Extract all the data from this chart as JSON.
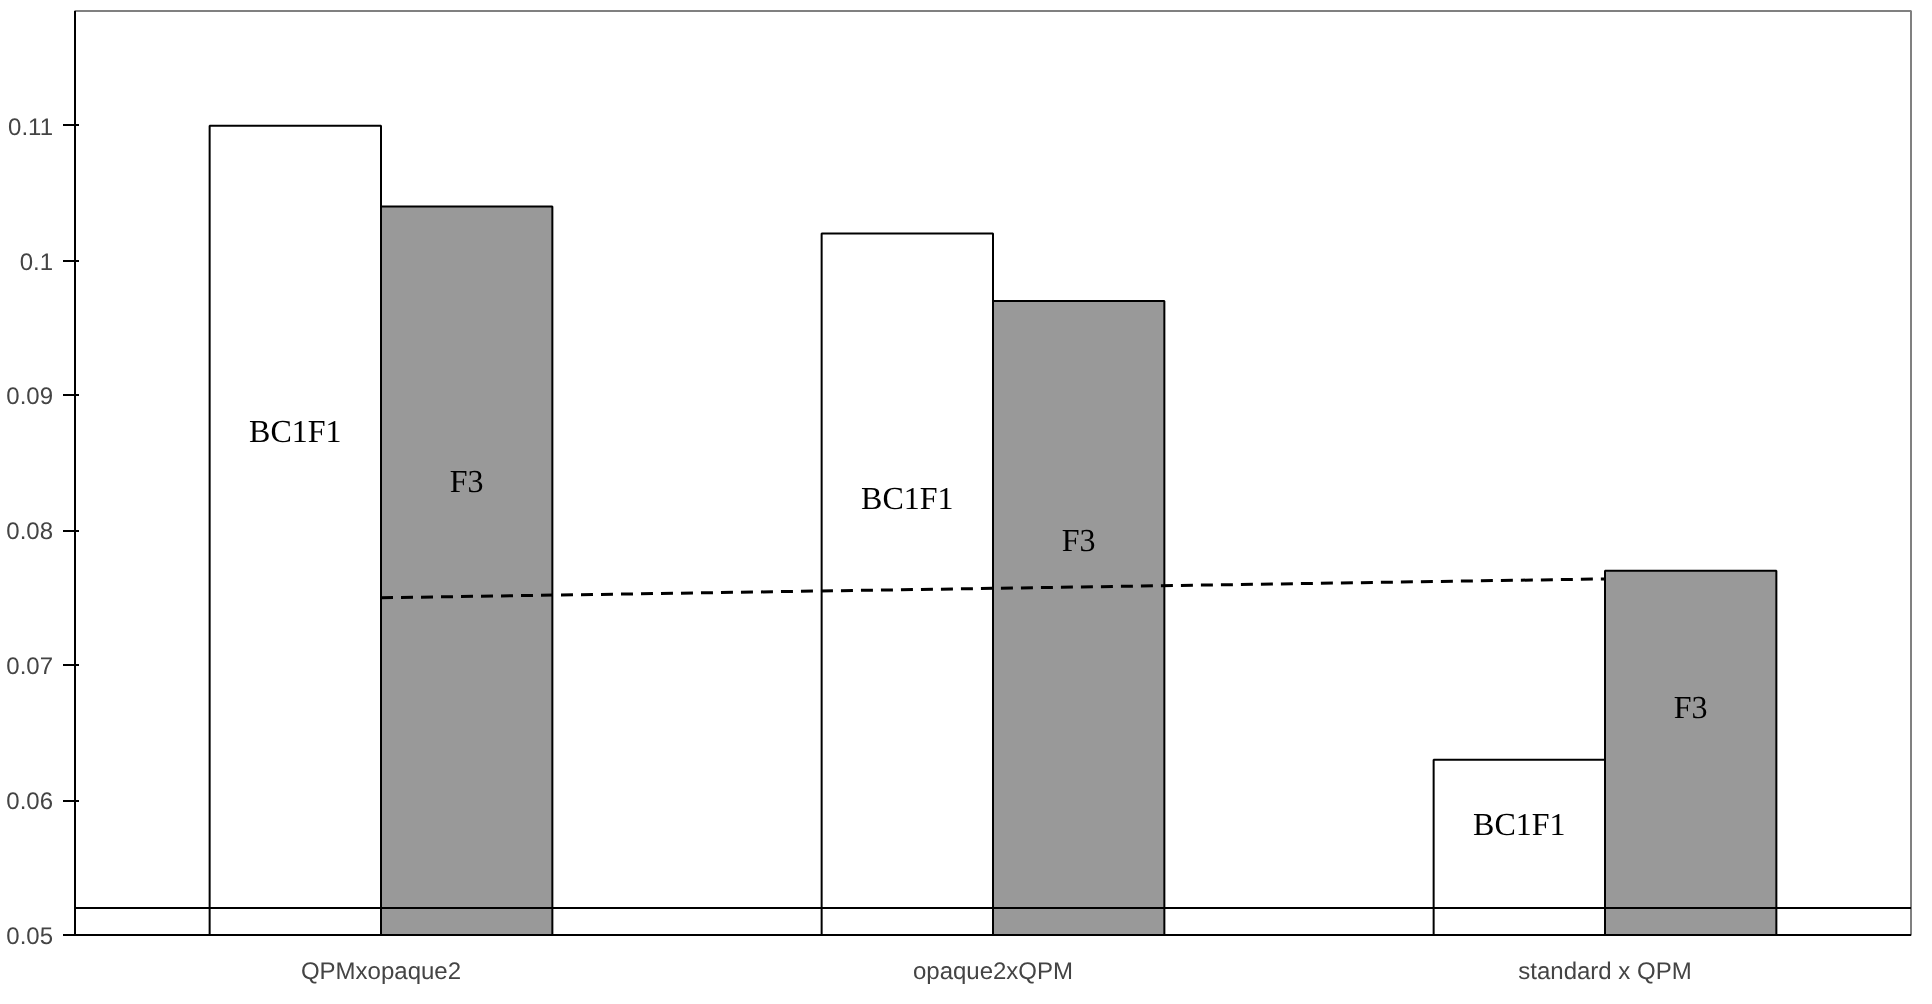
{
  "chart_data": {
    "type": "bar",
    "categories": [
      "QPMxopaque2",
      "opaque2xQPM",
      "standard x QPM"
    ],
    "series": [
      {
        "name": "BC1F1",
        "color": "#ffffff",
        "values": [
          0.11,
          0.102,
          0.063
        ]
      },
      {
        "name": "F3",
        "color": "#999999",
        "values": [
          0.104,
          0.097,
          0.077
        ]
      },
      {
        "type": "line",
        "values": [
          0.075,
          0.0757,
          0.0764
        ],
        "color": "#000000",
        "line_style": "dashed"
      }
    ],
    "ylim": [
      0.05,
      0.1185
    ],
    "yticks": [
      0.05,
      0.06,
      0.07,
      0.08,
      0.09,
      0.1,
      0.11
    ],
    "ref_lines": [
      {
        "axis": "y",
        "value": 0.052,
        "color": "#000000"
      }
    ],
    "grid": false
  }
}
